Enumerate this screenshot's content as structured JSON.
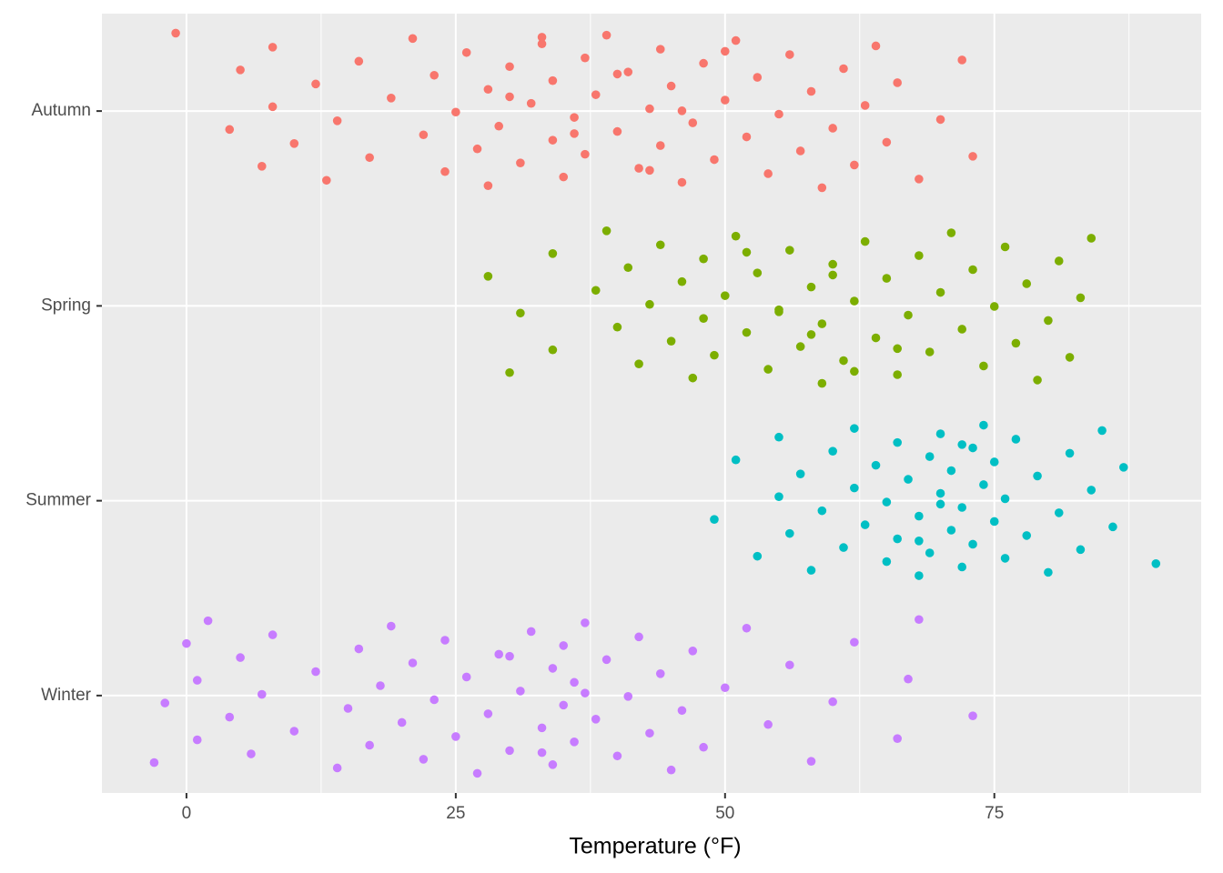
{
  "chart_data": {
    "type": "scatter",
    "x_label": "Temperature (°F)",
    "categories": [
      "Autumn",
      "Spring",
      "Summer",
      "Winter"
    ],
    "series": [
      {
        "name": "Autumn",
        "color": "#F8766D",
        "values": [
          -1,
          4,
          5,
          7,
          8,
          8,
          10,
          12,
          13,
          14,
          16,
          17,
          19,
          21,
          22,
          23,
          24,
          25,
          26,
          27,
          28,
          28,
          29,
          30,
          31,
          32,
          33,
          34,
          34,
          35,
          36,
          37,
          37,
          38,
          39,
          40,
          41,
          42,
          43,
          44,
          44,
          45,
          46,
          47,
          48,
          49,
          50,
          51,
          52,
          53,
          54,
          55,
          56,
          57,
          58,
          59,
          60,
          61,
          62,
          63,
          64,
          65,
          66,
          68,
          70,
          72,
          73,
          30,
          33,
          36,
          40,
          43,
          46,
          50
        ]
      },
      {
        "name": "Spring",
        "color": "#7CAE00",
        "values": [
          28,
          30,
          31,
          34,
          34,
          38,
          39,
          40,
          41,
          42,
          43,
          44,
          45,
          46,
          47,
          48,
          48,
          49,
          50,
          51,
          52,
          53,
          54,
          55,
          56,
          57,
          58,
          59,
          59,
          60,
          61,
          62,
          63,
          64,
          65,
          66,
          67,
          68,
          69,
          70,
          71,
          72,
          73,
          74,
          75,
          76,
          77,
          78,
          79,
          80,
          81,
          82,
          83,
          84,
          58,
          60,
          62,
          55,
          52,
          66
        ]
      },
      {
        "name": "Summer",
        "color": "#00BFC4",
        "values": [
          49,
          51,
          53,
          55,
          55,
          56,
          57,
          58,
          59,
          60,
          61,
          62,
          62,
          63,
          64,
          65,
          65,
          66,
          66,
          67,
          68,
          68,
          69,
          69,
          70,
          70,
          71,
          71,
          72,
          72,
          73,
          73,
          74,
          74,
          75,
          75,
          76,
          76,
          77,
          78,
          79,
          80,
          81,
          82,
          83,
          84,
          85,
          86,
          87,
          90,
          70,
          72,
          68
        ]
      },
      {
        "name": "Winter",
        "color": "#C77CFF",
        "values": [
          -3,
          -2,
          0,
          1,
          1,
          2,
          4,
          5,
          6,
          7,
          8,
          10,
          12,
          14,
          15,
          16,
          17,
          18,
          19,
          20,
          21,
          22,
          23,
          24,
          25,
          26,
          27,
          28,
          29,
          30,
          31,
          32,
          33,
          34,
          34,
          35,
          35,
          36,
          36,
          37,
          38,
          39,
          40,
          41,
          42,
          43,
          44,
          45,
          46,
          47,
          48,
          50,
          52,
          54,
          56,
          58,
          60,
          62,
          66,
          67,
          68,
          73,
          30,
          33,
          37
        ]
      }
    ],
    "xlim": [
      -7.85,
      94.2
    ],
    "xticks": [
      0,
      25,
      50,
      75
    ],
    "xminor": [
      12.5,
      37.5,
      62.5,
      87.5
    ],
    "grid": true
  }
}
